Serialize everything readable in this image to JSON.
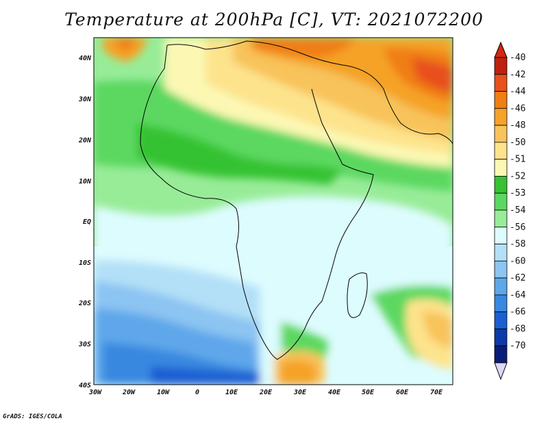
{
  "title": "Temperature at 200hPa [C], VT: 2021072200",
  "credit": "GrADS: IGES/COLA",
  "map": {
    "lat_labels": [
      "40N",
      "30N",
      "20N",
      "10N",
      "EQ",
      "10S",
      "20S",
      "30S",
      "40S"
    ],
    "lon_labels": [
      "30W",
      "20W",
      "10W",
      "0",
      "10E",
      "20E",
      "30E",
      "40E",
      "50E",
      "60E",
      "70E"
    ],
    "extent": {
      "lon_min": -30,
      "lon_max": 75,
      "lat_min": -40,
      "lat_max": 45
    }
  },
  "colorbar": {
    "levels": [
      {
        "label": "-40",
        "color": "#c0200e"
      },
      {
        "label": "-42",
        "color": "#e8501a"
      },
      {
        "label": "-44",
        "color": "#f07e12"
      },
      {
        "label": "-46",
        "color": "#f5a228"
      },
      {
        "label": "-48",
        "color": "#f8c35a"
      },
      {
        "label": "-50",
        "color": "#fde38c"
      },
      {
        "label": "-51",
        "color": "#fcf8b3"
      },
      {
        "label": "-52",
        "color": "#36c232"
      },
      {
        "label": "-53",
        "color": "#5cd860"
      },
      {
        "label": "-54",
        "color": "#98ec98"
      },
      {
        "label": "-56",
        "color": "#ddfcfe"
      },
      {
        "label": "-58",
        "color": "#b3e0f7"
      },
      {
        "label": "-60",
        "color": "#8cc4f2"
      },
      {
        "label": "-62",
        "color": "#5ea7ea"
      },
      {
        "label": "-64",
        "color": "#3888e0"
      },
      {
        "label": "-66",
        "color": "#1b5fd2"
      },
      {
        "label": "-68",
        "color": "#0d3aa6"
      },
      {
        "label": "-70",
        "color": "#0a1c7a"
      }
    ],
    "top_arrow_color": "#d6260f",
    "bottom_arrow_color": "#dcd8fa"
  }
}
